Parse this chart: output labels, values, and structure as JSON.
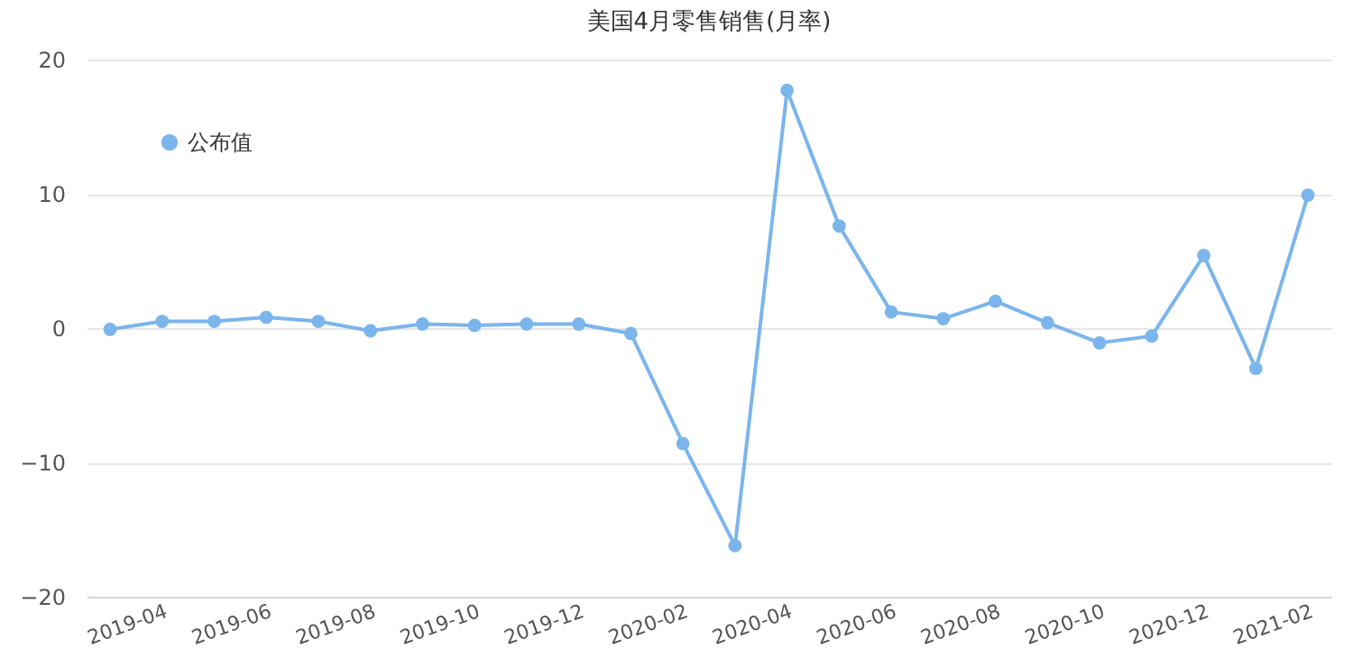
{
  "chart_data": {
    "type": "line",
    "title": "美国4月零售销售(月率)",
    "categories": [
      null,
      "2019-04",
      null,
      "2019-06",
      null,
      "2019-08",
      null,
      "2019-10",
      null,
      "2019-12",
      null,
      "2020-02",
      null,
      "2020-04",
      null,
      "2020-06",
      null,
      "2020-08",
      null,
      "2020-10",
      null,
      "2020-12",
      null,
      "2021-02"
    ],
    "series": [
      {
        "name": "公布值",
        "color": "#7cb5ec",
        "values": [
          -0.1,
          0.5,
          0.5,
          0.8,
          0.5,
          -0.2,
          0.3,
          0.2,
          0.3,
          0.3,
          -0.4,
          -8.6,
          -16.2,
          17.7,
          7.6,
          1.2,
          0.7,
          2.0,
          0.4,
          -1.1,
          -0.6,
          5.4,
          -3.0,
          9.9
        ]
      }
    ],
    "ylim": [
      -20,
      20
    ],
    "yticks": [
      -20,
      -10,
      0,
      10,
      20
    ],
    "grid": "y",
    "legend": "top left",
    "marker": "circle",
    "line_style": "solid"
  }
}
